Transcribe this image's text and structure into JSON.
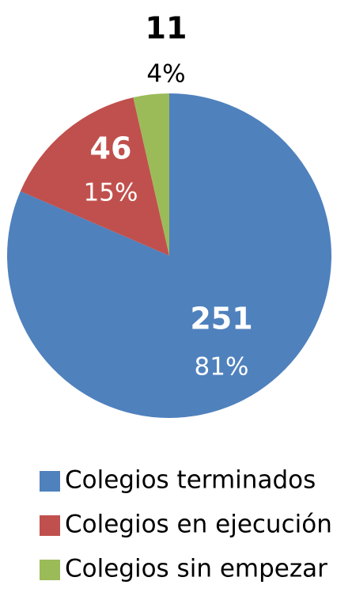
{
  "chart_data": {
    "type": "pie",
    "labels": [
      "Colegios terminados",
      "Colegios en ejecución",
      "Colegios sin empezar"
    ],
    "values": [
      251,
      46,
      11
    ],
    "percentages": [
      81,
      15,
      4
    ],
    "percentage_labels": [
      "81%",
      "15%",
      "4%"
    ],
    "colors": [
      "#4f81bd",
      "#c0504d",
      "#9bbb59"
    ],
    "legend": "bottom"
  }
}
